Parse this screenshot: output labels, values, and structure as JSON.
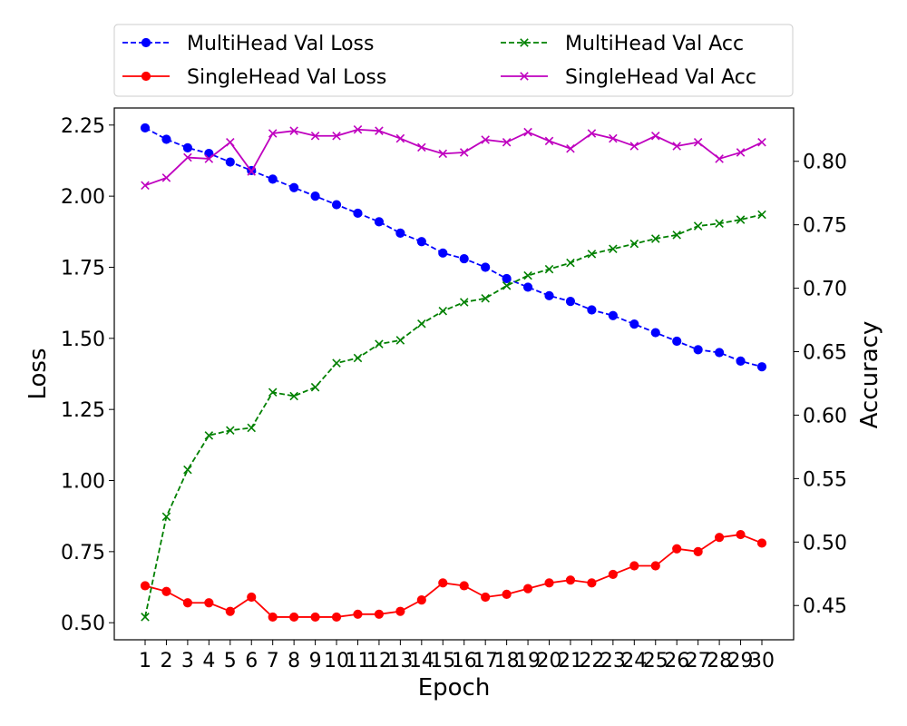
{
  "chart_data": {
    "type": "line",
    "xlabel": "Epoch",
    "ylabel_left": "Loss",
    "ylabel_right": "Accuracy",
    "x": [
      1,
      2,
      3,
      4,
      5,
      6,
      7,
      8,
      9,
      10,
      11,
      12,
      13,
      14,
      15,
      16,
      17,
      18,
      19,
      20,
      21,
      22,
      23,
      24,
      25,
      26,
      27,
      28,
      29,
      30
    ],
    "left_yticks": [
      "0.50",
      "0.75",
      "1.00",
      "1.25",
      "1.50",
      "1.75",
      "2.00",
      "2.25"
    ],
    "right_yticks": [
      "0.45",
      "0.50",
      "0.55",
      "0.60",
      "0.65",
      "0.70",
      "0.75",
      "0.80"
    ],
    "left_ylim": [
      0.44,
      2.31
    ],
    "right_ylim": [
      0.423,
      0.842
    ],
    "grid": false,
    "legend_position": "top",
    "series": [
      {
        "name": "MultiHead Val Loss",
        "axis": "left",
        "color": "#0000ff",
        "style": "dashed",
        "marker": "circle",
        "values": [
          2.24,
          2.2,
          2.17,
          2.15,
          2.12,
          2.09,
          2.06,
          2.03,
          2.0,
          1.97,
          1.94,
          1.91,
          1.87,
          1.84,
          1.8,
          1.78,
          1.75,
          1.71,
          1.68,
          1.65,
          1.63,
          1.6,
          1.58,
          1.55,
          1.52,
          1.49,
          1.46,
          1.45,
          1.42,
          1.4
        ]
      },
      {
        "name": "SingleHead Val Loss",
        "axis": "left",
        "color": "#ff0000",
        "style": "solid",
        "marker": "circle",
        "values": [
          0.63,
          0.61,
          0.57,
          0.57,
          0.54,
          0.59,
          0.52,
          0.52,
          0.52,
          0.52,
          0.53,
          0.53,
          0.54,
          0.58,
          0.64,
          0.63,
          0.59,
          0.6,
          0.62,
          0.64,
          0.65,
          0.64,
          0.67,
          0.7,
          0.7,
          0.76,
          0.75,
          0.8,
          0.81,
          0.78
        ]
      },
      {
        "name": "MultiHead Val Acc",
        "axis": "right",
        "color": "#008000",
        "style": "dashed",
        "marker": "x",
        "values": [
          0.441,
          0.52,
          0.557,
          0.584,
          0.588,
          0.59,
          0.618,
          0.615,
          0.622,
          0.641,
          0.645,
          0.656,
          0.659,
          0.672,
          0.682,
          0.689,
          0.692,
          0.702,
          0.71,
          0.715,
          0.72,
          0.727,
          0.731,
          0.735,
          0.739,
          0.742,
          0.749,
          0.751,
          0.754,
          0.758
        ]
      },
      {
        "name": "SingleHead Val Acc",
        "axis": "right",
        "color": "#bf00bf",
        "style": "solid",
        "marker": "x",
        "values": [
          0.781,
          0.787,
          0.803,
          0.802,
          0.815,
          0.792,
          0.822,
          0.824,
          0.82,
          0.82,
          0.825,
          0.824,
          0.818,
          0.811,
          0.806,
          0.807,
          0.817,
          0.815,
          0.823,
          0.816,
          0.81,
          0.822,
          0.818,
          0.812,
          0.82,
          0.812,
          0.815,
          0.802,
          0.807,
          0.815
        ]
      }
    ]
  }
}
